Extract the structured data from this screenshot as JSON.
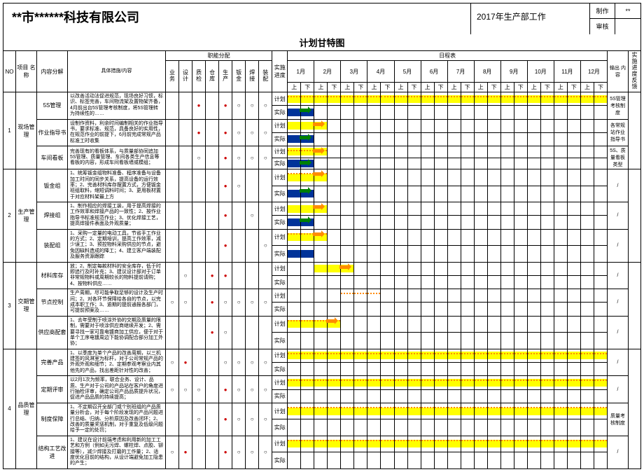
{
  "company": "**市******科技有限公司",
  "year_title": "2017年生产部工作",
  "meta": {
    "make": "制作",
    "make_v": "**",
    "review": "审核",
    "review_v": ""
  },
  "chart_title": "计划甘特图",
  "head": {
    "no": "NO",
    "proj": "项目\n名称",
    "sub": "内容分解",
    "detail": "具体措施/内容",
    "role_group": "职能分配",
    "roles": [
      "业务",
      "设计",
      "质检",
      "仓库",
      "生产",
      "钣金",
      "焊接",
      "装配"
    ],
    "prog": "实施\n进度",
    "sched": "日程表",
    "months": [
      "1月",
      "2月",
      "3月",
      "4月",
      "5月",
      "6月",
      "7月",
      "8月",
      "9月",
      "10月",
      "11月",
      "12月"
    ],
    "half": [
      "上",
      "下"
    ],
    "out": "输出\n内容",
    "fb": "实施进度反馈",
    "plan": "计划",
    "actual": "实际"
  },
  "groups": [
    {
      "no": "1",
      "proj": "现场管理",
      "rows": [
        {
          "sub": "5S管理",
          "detail": "以改善活动法促进规范，现场良好习惯，标识、标签完善，车间物流架及置物架齐备，4月前出台5S管理考核制度，将5S管理转为持续性的……",
          "roles": [
            "",
            "",
            "dot-filled",
            "",
            "dot-filled",
            "dot-hollow",
            "dot-hollow",
            "dot-hollow"
          ],
          "gantt": {
            "plan": {
              "y": [
                [
                  1,
                  24
                ]
              ],
              "dot": [
                [
                  1,
                  24
                ]
              ]
            },
            "actual": {
              "b": [
                [
                  1,
                  2
                ]
              ],
              "ga": 2
            }
          },
          "out": "5S管理考核制度"
        },
        {
          "sub": "作业指导书",
          "detail": "设制作资料，利余时间编制相关的作业指导书，要求标准、规范，具备良好的实用性，在规范作业的前提下，6月前完成常规产品标准工时收集",
          "roles": [
            "",
            "",
            "dot-filled",
            "",
            "dot-filled",
            "dot-hollow",
            "dot-hollow",
            "dot-hollow"
          ],
          "gantt": {
            "plan": {
              "y": [
                [
                  1,
                  3
                ]
              ],
              "oa": 3
            },
            "actual": {
              "b": [
                [
                  1,
                  2
                ]
              ],
              "ga": 2
            }
          },
          "out": "各常规站作业指导书"
        },
        {
          "sub": "车间看板",
          "detail": "完善现有的看板体系，与质量部协同追加5S管理、质量管理、车间各类生产信息等看板的内容，形成车间看板墙或模组；",
          "roles": [
            "",
            "",
            "dot-hollow",
            "",
            "dot-filled",
            "dot-hollow",
            "dot-hollow",
            "dot-hollow"
          ],
          "gantt": {
            "plan": {
              "y": [
                [
                  1,
                  3
                ]
              ],
              "dot": [
                [
                  1,
                  3
                ]
              ],
              "oa": 3
            },
            "actual": {
              "b": [
                [
                  1,
                  2
                ]
              ],
              "ga": 2
            }
          },
          "out": "5S、质量看板类型"
        }
      ]
    },
    {
      "no": "2",
      "proj": "生产管理",
      "rows": [
        {
          "sub": "钣金组",
          "detail": "1、统筹钣金组物料准备、程序准备与设备加工时间的同步关系，提高设备的运行效率；2、完善材料库存摆置方式，方便钣金班组取料，缩短调料时间；3、更用板材置于对应材料架最上方",
          "roles": [
            "",
            "",
            "",
            "",
            "dot-filled",
            "dot-hollow",
            "",
            ""
          ],
          "gantt": {
            "plan": {
              "y": [
                [
                  1,
                  3
                ]
              ],
              "dot": [
                [
                  1,
                  3
                ]
              ],
              "oa": 3
            },
            "actual": {
              "b": [
                [
                  1,
                  2
                ]
              ],
              "ga": 2
            }
          },
          "out": "/"
        },
        {
          "sub": "焊接组",
          "detail": "1、制作相应的焊接工装，用于提高焊接的工作效率和焊接产品的一致性；2、按作业指导书标准规范作业；3、优化焊接工艺，提高焊接件表面及外观质量；",
          "roles": [
            "",
            "",
            "",
            "",
            "dot-filled",
            "",
            "dot-hollow",
            ""
          ],
          "gantt": {
            "plan": {
              "y": [
                [
                  1,
                  3
                ]
              ],
              "oa": 3
            },
            "actual": {
              "b": [
                [
                  1,
                  2
                ]
              ],
              "ga": 2
            }
          },
          "out": "/"
        },
        {
          "sub": "装配组",
          "detail": "1、采购一定量的电动工具，节省手工作业的方式；2、定期培训，提高工作效率，减少误工；3、预控物料采购供应的节点，避免因缺料造成的降工；4、建立客户端装配及服务资源跟踪",
          "roles": [
            "",
            "",
            "",
            "",
            "dot-filled",
            "",
            "",
            "dot-hollow"
          ],
          "gantt": {
            "plan": {
              "y": [
                [
                  1,
                  3
                ]
              ],
              "dot": [
                [
                  1,
                  3
                ]
              ],
              "oa": 3
            },
            "actual": {
              "b": [
                [
                  1,
                  2
                ]
              ]
            }
          },
          "out": "/"
        }
      ]
    },
    {
      "no": "3",
      "proj": "交期管理",
      "rows": [
        {
          "sub": "材料库存",
          "detail": "放；2、制定每款材料的安全库存，低于时即追行及时补充；3、建议设计部对于订单非常规物料或周期较长的物料提前请购；4、按物料供应……",
          "roles": [
            "",
            "dot-hollow",
            "",
            "dot-filled",
            "dot-filled",
            "",
            "",
            ""
          ],
          "gantt": {
            "plan": {
              "y": [
                [
                  3,
                  5
                ]
              ],
              "oa": 5
            },
            "actual": {}
          },
          "out": "/"
        },
        {
          "sub": "节点控制",
          "detail": "生产周期，尽可能争取足够的设计及生产时间；2、对各环节保障给各自的节点，以完成本职工作；3、逾期的提前通报各部门，可提前预案及……",
          "roles": [
            "dot-hollow",
            "dot-hollow",
            "",
            "dot-filled",
            "dot-hollow",
            "dot-hollow",
            "dot-hollow",
            "dot-hollow"
          ],
          "gantt": {
            "plan": {
              "dot": [
                [
                  5,
                  7
                ]
              ]
            },
            "actual": {}
          },
          "out": "/"
        },
        {
          "sub": "供应商配套",
          "detail": "1、去年受制于喷涂外协的交期及质量的限制，需要对于喷涂供应商继续开发；2、需要寻找一家可靠电镀商加工供应，便于对于单个工序电镀周边下能协调配合部分加工外协；",
          "roles": [
            "",
            "",
            "",
            "dot-filled",
            "dot-hollow",
            "",
            "",
            ""
          ],
          "gantt": {
            "plan": {
              "y": [
                [
                  1,
                  4
                ]
              ],
              "dot": [
                [
                  1,
                  4
                ]
              ],
              "oa": 4
            },
            "actual": {}
          },
          "out": "/"
        }
      ]
    },
    {
      "no": "4",
      "proj": "品质管理",
      "rows": [
        {
          "sub": "完善产品",
          "detail": "1、以季度为单个产品的改善周期，以三机建签的风淋室为标杆，对于公司常规产品的外观外观和细节；2、定期参观考察业内其他先的产品，找出差距针对性的改善；",
          "roles": [
            "dot-hollow",
            "dot-filled",
            "",
            "",
            "dot-hollow",
            "dot-hollow",
            "dot-hollow",
            "dot-hollow"
          ],
          "gantt": {
            "plan": {
              "y": [
                [
                  1,
                  24
                ]
              ],
              "dot": [
                [
                  1,
                  24
                ]
              ]
            },
            "actual": {}
          },
          "out": "/"
        },
        {
          "sub": "定期评审",
          "detail": "以2月1次为频率，联合业务、设计、品质、生产对于公司的产品站在客户的角度进行抽检评审，确定公司产品品质提升状况，促进产品品质的持续提高；",
          "roles": [
            "dot-hollow",
            "dot-hollow",
            "dot-hollow",
            "",
            "dot-filled",
            "dot-hollow",
            "dot-hollow",
            "dot-hollow"
          ],
          "gantt": {
            "plan": {
              "y": [
                [
                  1,
                  24
                ]
              ],
              "dot": [
                [
                  1,
                  24
                ]
              ]
            },
            "actual": {}
          },
          "out": "/"
        },
        {
          "sub": "制度保障",
          "detail": "1、不定期召开全部门或个别班组的产品质量分析会，对于每个阶段发现的产品问题进行总结、归纳、分析原因及改善闭环；2、改善的质量奖惩机制，对于重复及低级问题给予一定的处罚；",
          "roles": [
            "",
            "",
            "dot-hollow",
            "",
            "dot-filled",
            "dot-hollow",
            "dot-hollow",
            "dot-hollow"
          ],
          "gantt": {
            "plan": {
              "y": [
                [
                  1,
                  24
                ]
              ],
              "dot": [
                [
                  1,
                  24
                ]
              ]
            },
            "actual": {}
          },
          "out": "质量考核制度"
        },
        {
          "sub": "结构工艺改进",
          "detail": "1、建议在设计前端考虑和利用新的加工工艺和方例（例如无污焊、螺柱焊、点胶、铆接等），减少焊接及打磨的工作量；2、适度优化目前的结构，从设计端避免加工隐患的产生；",
          "roles": [
            "dot-hollow",
            "dot-filled",
            "",
            "",
            "dot-filled",
            "dot-hollow",
            "dot-hollow",
            "dot-hollow"
          ],
          "gantt": {
            "plan": {
              "y": [
                [
                  1,
                  24
                ]
              ],
              "dot": [
                [
                  1,
                  24
                ]
              ]
            },
            "actual": {}
          },
          "out": "/"
        }
      ]
    }
  ]
}
